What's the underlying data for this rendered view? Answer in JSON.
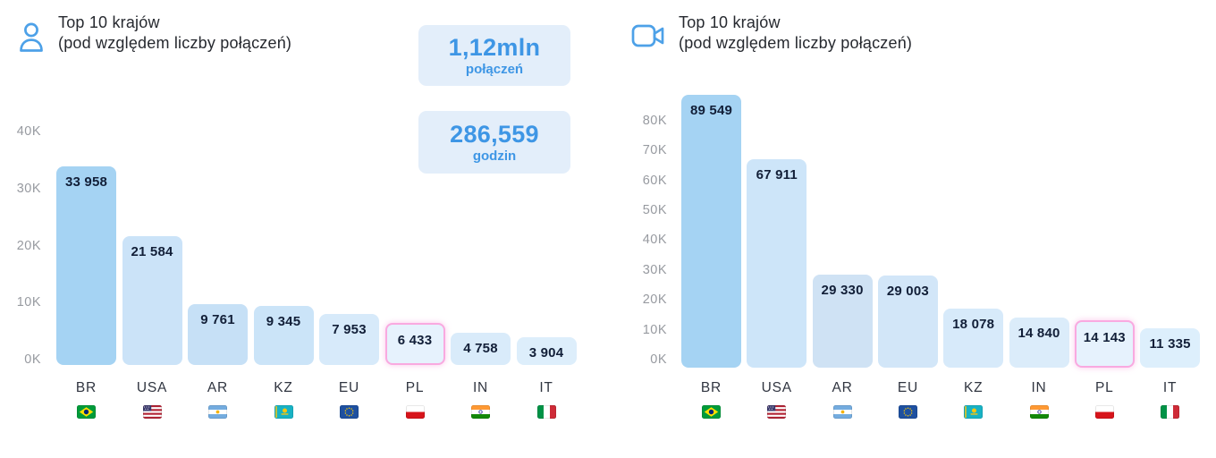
{
  "colors": {
    "accent_blue": "#3e96e5",
    "icon_blue": "#4da1e8",
    "card_bg": "#e3eefa",
    "highlight_bar": "#a5d3f3",
    "outline_pink": "#f9a9e0",
    "tick_gray": "#979aa0",
    "bar_label_navy": "#121f38"
  },
  "stats": [
    {
      "value": "1,12mln",
      "label": "połączeń"
    },
    {
      "value": "286,559",
      "label": "godzin"
    }
  ],
  "chart_data": [
    {
      "type": "bar",
      "icon": "user-icon",
      "title_line1": "Top 10 krajów",
      "title_line2": "(pod względem liczby połączeń)",
      "categories": [
        "BR",
        "USA",
        "AR",
        "KZ",
        "EU",
        "PL",
        "IN",
        "IT"
      ],
      "values": [
        33958,
        21584,
        9761,
        9345,
        7953,
        6433,
        4758,
        3904
      ],
      "value_labels": [
        "33 958",
        "21 584",
        "9 761",
        "9 345",
        "7 953",
        "6 433",
        "4 758",
        "3 904"
      ],
      "flags": [
        "br",
        "us",
        "ar",
        "kz",
        "eu",
        "pl",
        "in",
        "it"
      ],
      "bar_colors": [
        "#a5d3f3",
        "#cbe3f8",
        "#c6e0f6",
        "#cbe4f8",
        "#d7eafa",
        "#e6f2fd",
        "#d9ebfa",
        "#ddeefb"
      ],
      "outlined_index": 5,
      "yticks": [
        "0K",
        "10K",
        "20K",
        "30K",
        "40K"
      ],
      "ylim": [
        0,
        40000
      ],
      "grid": false,
      "legend": null
    },
    {
      "type": "bar",
      "icon": "video-camera-icon",
      "title_line1": "Top 10 krajów",
      "title_line2": "(pod względem liczby połączeń)",
      "categories": [
        "BR",
        "USA",
        "AR",
        "EU",
        "KZ",
        "IN",
        "PL",
        "IT"
      ],
      "values": [
        89549,
        67911,
        29330,
        29003,
        18078,
        14840,
        14143,
        11335
      ],
      "value_labels": [
        "89 549",
        "67 911",
        "29 330",
        "29 003",
        "18 078",
        "14 840",
        "14 143",
        "11 335"
      ],
      "flags": [
        "br",
        "us",
        "ar",
        "eu",
        "kz",
        "in",
        "pl",
        "it"
      ],
      "bar_colors": [
        "#a5d3f3",
        "#cde5f9",
        "#cfe2f4",
        "#d2e6f8",
        "#d7eafa",
        "#dbecfa",
        "#e6f2fd",
        "#ddeffc"
      ],
      "outlined_index": 6,
      "yticks": [
        "0K",
        "10K",
        "20K",
        "30K",
        "40K",
        "50K",
        "60K",
        "70K",
        "80K"
      ],
      "ylim": [
        0,
        90000
      ],
      "grid": false,
      "legend": null
    }
  ]
}
